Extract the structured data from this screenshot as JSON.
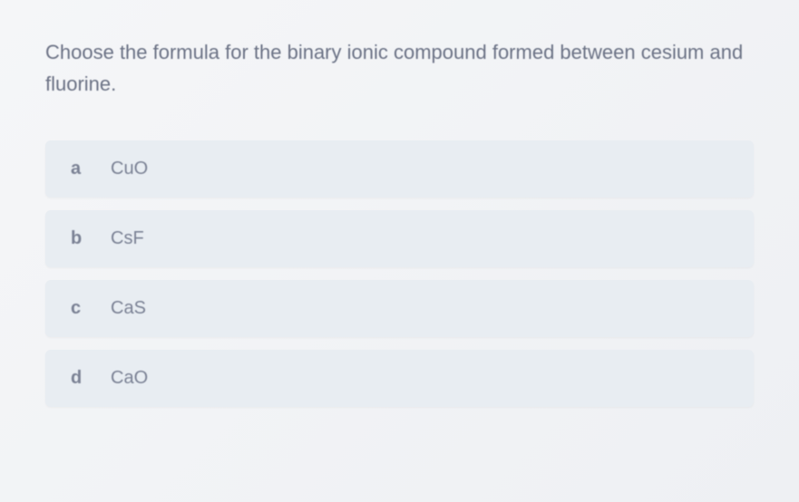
{
  "question": {
    "text": "Choose the formula for the binary ionic compound formed between cesium and fluorine.",
    "text_color": "#6b7285",
    "font_size": 22
  },
  "options": [
    {
      "letter": "a",
      "text": "CuO"
    },
    {
      "letter": "b",
      "text": "CsF"
    },
    {
      "letter": "c",
      "text": "CaS"
    },
    {
      "letter": "d",
      "text": "CaO"
    }
  ],
  "styling": {
    "background_color": "#f5f6f8",
    "option_background": "#e8edf2",
    "option_text_color": "#7a8194",
    "option_letter_color": "#7a8194",
    "option_border_radius": 6,
    "option_padding": "20px 28px",
    "option_gap": 14,
    "option_font_size": 20
  }
}
